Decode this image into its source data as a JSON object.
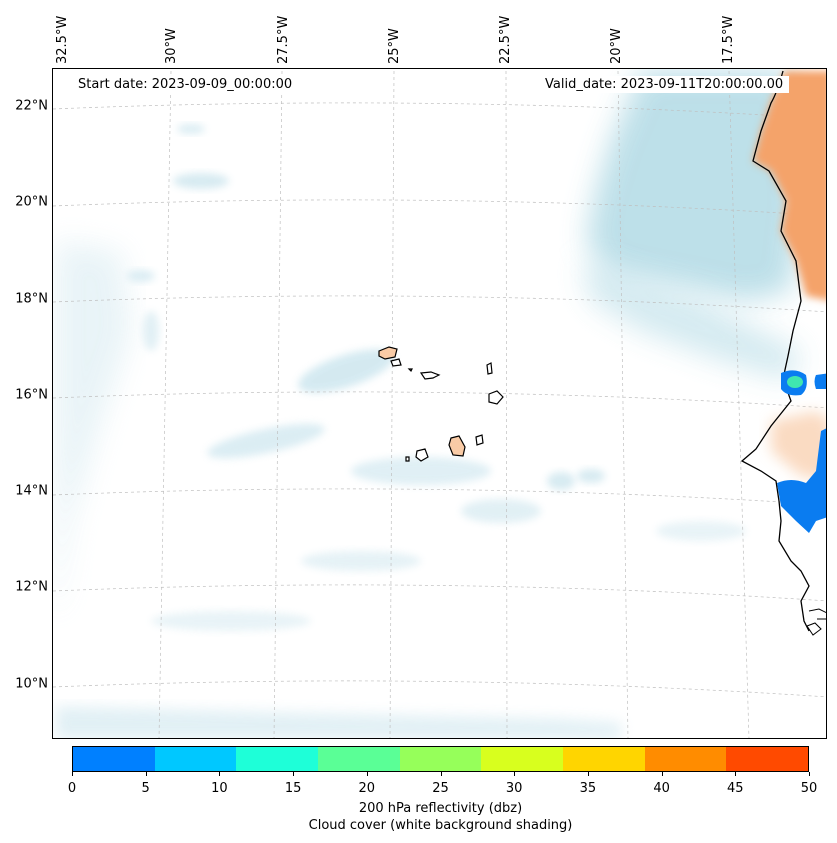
{
  "map": {
    "header_left": "Start date: 2023-09-09_00:00:00",
    "header_right": "Valid_date: 2023-09-11T20:00:00.00",
    "lon_labels": [
      "32.5°W",
      "30°W",
      "27.5°W",
      "25°W",
      "22.5°W",
      "20°W",
      "17.5°W"
    ],
    "lat_labels": [
      "22°N",
      "20°N",
      "18°N",
      "16°N",
      "14°N",
      "12°N",
      "10°N"
    ],
    "colors": {
      "cloud": "#a9d6e2",
      "land_warm": "#f4a36a",
      "land_light": "#f9d2b3",
      "radar_blue": "#0a7cf0",
      "coast": "#000000",
      "grid": "#bfbfbf"
    }
  },
  "colorbar": {
    "ticks": [
      "0",
      "5",
      "10",
      "15",
      "20",
      "25",
      "30",
      "35",
      "40",
      "45",
      "50"
    ],
    "colors": [
      "#0080ff",
      "#00c8ff",
      "#1effd8",
      "#5aff96",
      "#96ff5a",
      "#d8ff1e",
      "#ffd500",
      "#ff8c00",
      "#ff4a00"
    ],
    "label_line1": "200 hPa reflectivity (dbz)",
    "label_line2": "Cloud cover (white background shading)"
  }
}
